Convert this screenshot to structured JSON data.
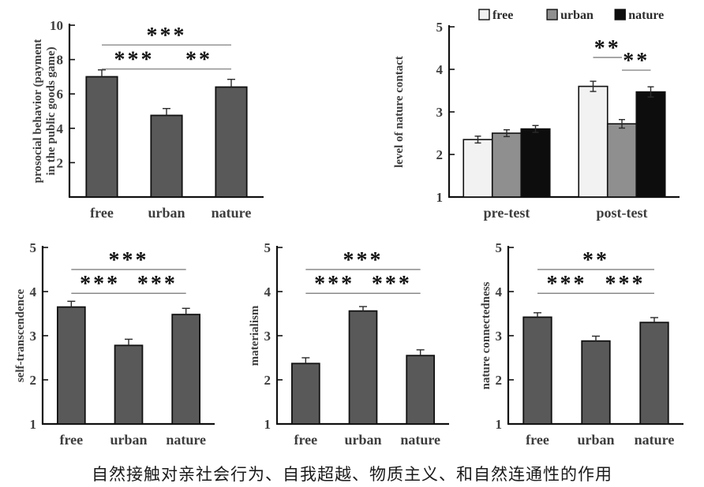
{
  "caption": "自然接触对亲社会行为、自我超越、物质主义、和自然连通性的作用",
  "chart_data": [
    {
      "id": "prosocial-behavior",
      "type": "bar",
      "ylabel_lines": [
        "prosocial behavior (payment",
        "in the public goods game)"
      ],
      "ymin": 0,
      "ymax": 10,
      "yticks": [
        2,
        4,
        6,
        8,
        10
      ],
      "categories": [
        "free",
        "urban",
        "nature"
      ],
      "values": [
        7.0,
        4.75,
        6.4
      ],
      "errors": [
        0.4,
        0.4,
        0.45
      ],
      "bar_color": "#595959",
      "grid": false,
      "sig": [
        {
          "from": 0,
          "to": 1,
          "y": 7.45,
          "label": "***"
        },
        {
          "from": 1,
          "to": 2,
          "y": 7.45,
          "label": "**"
        },
        {
          "from": 0,
          "to": 2,
          "y": 8.85,
          "label": "***"
        }
      ]
    },
    {
      "id": "level-of-nature-contact",
      "type": "grouped-bar",
      "ylabel_lines": [
        "level of nature contact"
      ],
      "ymin": 1,
      "ymax": 5,
      "yticks": [
        1,
        2,
        3,
        4,
        5
      ],
      "categories": [
        "pre-test",
        "post-test"
      ],
      "series": [
        {
          "name": "free",
          "color": "#f2f2f2",
          "values": [
            2.35,
            3.6
          ],
          "errors": [
            0.08,
            0.12
          ]
        },
        {
          "name": "urban",
          "color": "#8f8f8f",
          "values": [
            2.5,
            2.72
          ],
          "errors": [
            0.08,
            0.1
          ]
        },
        {
          "name": "nature",
          "color": "#0d0d0d",
          "values": [
            2.6,
            3.47
          ],
          "errors": [
            0.08,
            0.12
          ]
        }
      ],
      "legend": [
        "free",
        "urban",
        "nature"
      ],
      "legend_position": "top",
      "grid": false,
      "sig": [
        {
          "group": 1,
          "from": 0,
          "to": 1,
          "y": 4.28,
          "label": "**"
        },
        {
          "group": 1,
          "from": 1,
          "to": 2,
          "y": 3.98,
          "label": "**"
        }
      ]
    },
    {
      "id": "self-transcendence",
      "type": "bar",
      "ylabel_lines": [
        "self-transcendence"
      ],
      "ymin": 1,
      "ymax": 5,
      "yticks": [
        1,
        2,
        3,
        4,
        5
      ],
      "categories": [
        "free",
        "urban",
        "nature"
      ],
      "values": [
        3.65,
        2.78,
        3.48
      ],
      "errors": [
        0.13,
        0.14,
        0.14
      ],
      "bar_color": "#595959",
      "grid": false,
      "sig": [
        {
          "from": 0,
          "to": 1,
          "y": 3.96,
          "label": "***"
        },
        {
          "from": 1,
          "to": 2,
          "y": 3.96,
          "label": "***"
        },
        {
          "from": 0,
          "to": 2,
          "y": 4.5,
          "label": "***"
        }
      ]
    },
    {
      "id": "materialism",
      "type": "bar",
      "ylabel_lines": [
        "materialism"
      ],
      "ymin": 1,
      "ymax": 5,
      "yticks": [
        1,
        2,
        3,
        4,
        5
      ],
      "categories": [
        "free",
        "urban",
        "nature"
      ],
      "values": [
        2.37,
        3.56,
        2.55
      ],
      "errors": [
        0.13,
        0.1,
        0.13
      ],
      "bar_color": "#595959",
      "grid": false,
      "sig": [
        {
          "from": 0,
          "to": 1,
          "y": 3.96,
          "label": "***"
        },
        {
          "from": 1,
          "to": 2,
          "y": 3.96,
          "label": "***"
        },
        {
          "from": 0,
          "to": 2,
          "y": 4.5,
          "label": "***"
        }
      ]
    },
    {
      "id": "nature-connectedness",
      "type": "bar",
      "ylabel_lines": [
        "nature connectedness"
      ],
      "ymin": 1,
      "ymax": 5,
      "yticks": [
        1,
        2,
        3,
        4,
        5
      ],
      "categories": [
        "free",
        "urban",
        "nature"
      ],
      "values": [
        3.42,
        2.88,
        3.3
      ],
      "errors": [
        0.1,
        0.11,
        0.11
      ],
      "bar_color": "#595959",
      "grid": false,
      "sig": [
        {
          "from": 0,
          "to": 1,
          "y": 3.96,
          "label": "***"
        },
        {
          "from": 1,
          "to": 2,
          "y": 3.96,
          "label": "***"
        },
        {
          "from": 0,
          "to": 2,
          "y": 4.5,
          "label": "**"
        }
      ]
    }
  ]
}
